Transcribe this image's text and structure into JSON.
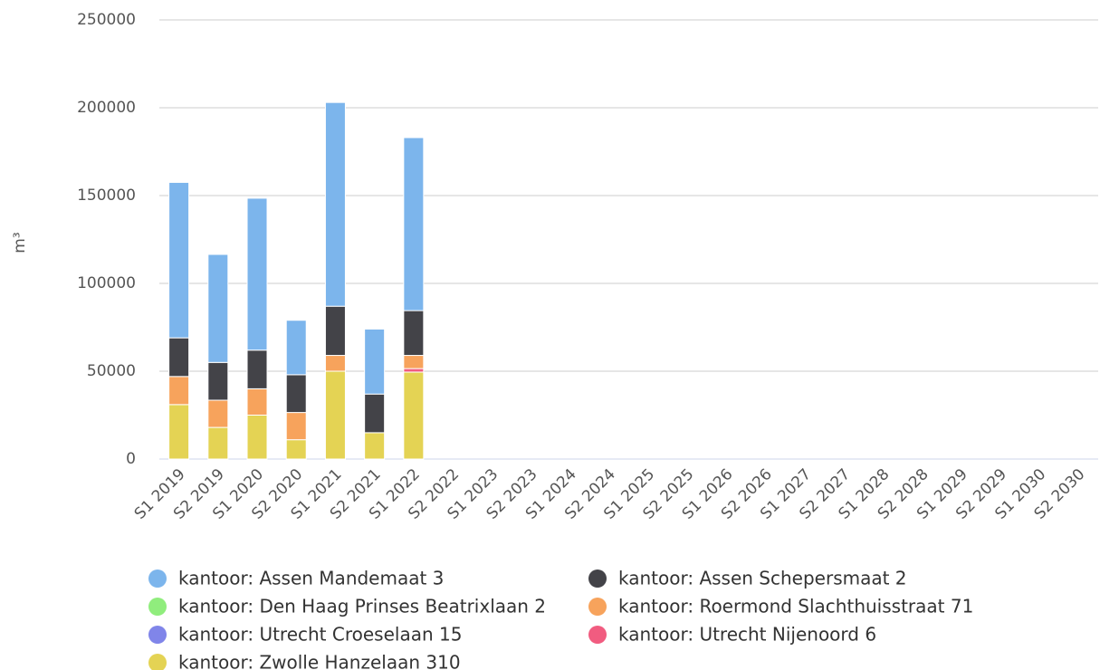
{
  "chart_data": {
    "type": "stacked_bar",
    "y_label": "m³",
    "categories": [
      "S1 2019",
      "S2 2019",
      "S1 2020",
      "S2 2020",
      "S1 2021",
      "S2 2021",
      "S1 2022",
      "S2 2022",
      "S1 2023",
      "S2 2023",
      "S1 2024",
      "S2 2024",
      "S1 2025",
      "S2 2025",
      "S1 2026",
      "S2 2026",
      "S1 2027",
      "S2 2027",
      "S1 2028",
      "S2 2028",
      "S1 2029",
      "S2 2029",
      "S1 2030",
      "S2 2030"
    ],
    "ylim": [
      0,
      250000
    ],
    "yticks": [
      0,
      50000,
      100000,
      150000,
      200000,
      250000
    ],
    "grid": true,
    "series": [
      {
        "name": "kantoor: Assen Mandemaat 3",
        "color": "#7cb5ec",
        "values": [
          88500,
          61500,
          86500,
          31000,
          116000,
          37000,
          98500,
          null,
          null,
          null,
          null,
          null,
          null,
          null,
          null,
          null,
          null,
          null,
          null,
          null,
          null,
          null,
          null,
          null
        ]
      },
      {
        "name": "kantoor: Assen Schepersmaat 2",
        "color": "#434348",
        "values": [
          22000,
          21500,
          22000,
          21500,
          28000,
          22000,
          25500,
          null,
          null,
          null,
          null,
          null,
          null,
          null,
          null,
          null,
          null,
          null,
          null,
          null,
          null,
          null,
          null,
          null
        ]
      },
      {
        "name": "kantoor: Den Haag Prinses Beatrixlaan 2",
        "color": "#90ed7d",
        "values": [
          null,
          null,
          null,
          null,
          null,
          null,
          null,
          null,
          null,
          null,
          null,
          null,
          null,
          null,
          null,
          null,
          null,
          null,
          null,
          null,
          null,
          null,
          null,
          null
        ]
      },
      {
        "name": "kantoor: Roermond Slachthuisstraat 71",
        "color": "#f7a35c",
        "values": [
          16000,
          15500,
          15000,
          15500,
          9000,
          null,
          7500,
          null,
          null,
          null,
          null,
          null,
          null,
          null,
          null,
          null,
          null,
          null,
          null,
          null,
          null,
          null,
          null,
          null
        ]
      },
      {
        "name": "kantoor: Utrecht Croeselaan 15",
        "color": "#8085e9",
        "values": [
          null,
          null,
          null,
          null,
          null,
          null,
          null,
          null,
          null,
          null,
          null,
          null,
          null,
          null,
          null,
          null,
          null,
          null,
          null,
          null,
          null,
          null,
          null,
          null
        ]
      },
      {
        "name": "kantoor: Utrecht Nijenoord 6",
        "color": "#f15c80",
        "values": [
          null,
          null,
          null,
          null,
          null,
          null,
          2000,
          null,
          null,
          null,
          null,
          null,
          null,
          null,
          null,
          null,
          null,
          null,
          null,
          null,
          null,
          null,
          null,
          null
        ]
      },
      {
        "name": "kantoor: Zwolle Hanzelaan 310",
        "color": "#e4d354",
        "values": [
          31000,
          18000,
          25000,
          11000,
          50000,
          15000,
          49500,
          null,
          null,
          null,
          null,
          null,
          null,
          null,
          null,
          null,
          null,
          null,
          null,
          null,
          null,
          null,
          null,
          null
        ]
      }
    ]
  }
}
